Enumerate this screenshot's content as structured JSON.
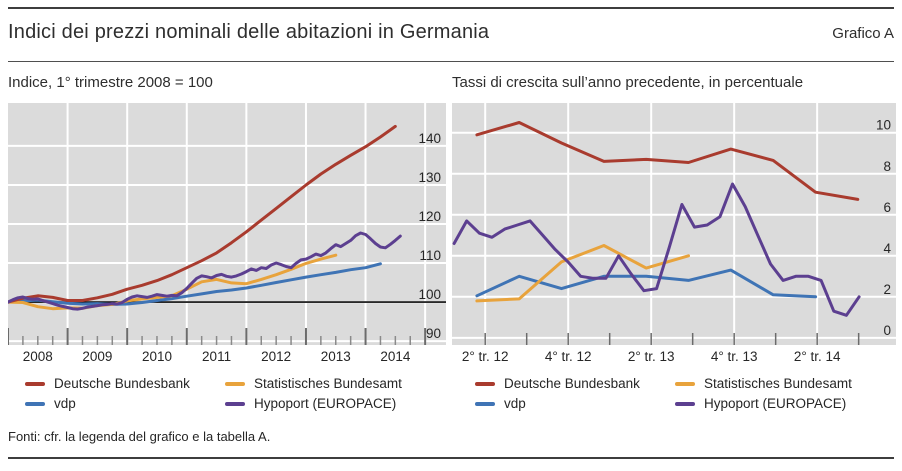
{
  "header": {
    "title": "Indici dei prezzi nominali delle abitazioni in Germania",
    "graph_label": "Grafico A"
  },
  "panels": [
    {
      "subtitle": "Indice, 1° trimestre 2008 = 100"
    },
    {
      "subtitle": "Tassi di crescita sull’anno precedente, in percentuale"
    }
  ],
  "legend": {
    "items": [
      {
        "label": "Deutsche Bundesbank",
        "color": "#A93B2E"
      },
      {
        "label": "Statistisches Bundesamt",
        "color": "#E8A33C"
      },
      {
        "label": "vdp",
        "color": "#3F74B5"
      },
      {
        "label": "Hypoport (EUROPACE)",
        "color": "#5C3F90"
      }
    ]
  },
  "footer": {
    "text": "Fonti: cfr. la legenda del grafico e la tabella A."
  },
  "colors": {
    "panel_background": "#DBDBDB",
    "gridline": "#FFFFFF",
    "baseline": "#0a0a0a",
    "tick_major": "#6b6b6b",
    "tick_minor": "#8a8a8a",
    "text": "#262626"
  },
  "chart_data": [
    {
      "type": "line",
      "title": "Indice, 1° trimestre 2008 = 100",
      "xlabel": "",
      "ylabel": "",
      "xlim": [
        2008,
        2015.35
      ],
      "ylim": [
        89,
        151
      ],
      "yticks": [
        90,
        100,
        110,
        120,
        130,
        140
      ],
      "baseline": 100,
      "x_gridlines": [
        2009,
        2010,
        2011,
        2012,
        2013,
        2014,
        2015
      ],
      "x_tick_range": [
        2008,
        2015
      ],
      "x_minor_step": 0.25,
      "grid": true,
      "legend_position": "below",
      "x_labels": [
        {
          "pos": 2008.5,
          "text": "2008"
        },
        {
          "pos": 2009.5,
          "text": "2009"
        },
        {
          "pos": 2010.5,
          "text": "2010"
        },
        {
          "pos": 2011.5,
          "text": "2011"
        },
        {
          "pos": 2012.5,
          "text": "2012"
        },
        {
          "pos": 2013.5,
          "text": "2013"
        },
        {
          "pos": 2014.5,
          "text": "2014"
        }
      ],
      "series": [
        {
          "name": "vdp",
          "color": "#3F74B5",
          "x_start": 2008.0,
          "x_step": 0.25,
          "values": [
            100,
            100.3,
            100.5,
            100.1,
            99.7,
            99.5,
            99.6,
            99.4,
            99.5,
            99.9,
            100.4,
            100.9,
            101.5,
            102.1,
            102.7,
            103.1,
            103.6,
            104.3,
            105.0,
            105.7,
            106.4,
            107.0,
            107.6,
            108.3,
            108.8,
            109.8
          ]
        },
        {
          "name": "Statistisches Bundesamt",
          "color": "#E8A33C",
          "x_start": 2008.0,
          "x_step": 0.25,
          "values": [
            100,
            99.9,
            98.8,
            98.3,
            98.5,
            98.4,
            99.1,
            99.4,
            100.3,
            100.8,
            101.2,
            101.6,
            103.3,
            105.2,
            105.8,
            104.9,
            104.7,
            105.8,
            107.0,
            108.4,
            109.9,
            111.0,
            112.0
          ]
        },
        {
          "name": "Deutsche Bundesbank",
          "color": "#A93B2E",
          "x_start": 2008.0,
          "x_step": 0.25,
          "values": [
            100,
            101.0,
            101.6,
            101.2,
            100.4,
            100.4,
            101.1,
            102.0,
            103.3,
            104.3,
            105.5,
            107.0,
            108.8,
            110.6,
            112.6,
            115.2,
            118.0,
            121.0,
            124.0,
            127.0,
            130.0,
            132.8,
            135.3,
            137.6,
            139.8,
            142.3,
            145.0
          ]
        },
        {
          "name": "Hypoport (EUROPACE)",
          "color": "#5C3F90",
          "x_start": 2008.0,
          "x_step": 0.0833333,
          "values": [
            100,
            100.6,
            101.1,
            101.3,
            100.9,
            100.7,
            100.8,
            100.4,
            100.0,
            99.6,
            99.2,
            98.9,
            98.6,
            98.3,
            98.2,
            98.4,
            98.7,
            98.9,
            99.1,
            99.3,
            99.4,
            99.6,
            99.5,
            99.9,
            100.7,
            101.3,
            101.6,
            101.4,
            101.2,
            101.5,
            101.9,
            101.7,
            101.5,
            101.7,
            101.6,
            102.4,
            103.5,
            104.8,
            106.1,
            106.7,
            106.5,
            106.2,
            106.8,
            107.1,
            106.6,
            106.4,
            106.7,
            107.2,
            107.8,
            108.5,
            108.1,
            108.8,
            108.6,
            109.5,
            110.0,
            109.6,
            109.1,
            108.8,
            109.9,
            110.8,
            111.0,
            111.6,
            112.3,
            111.9,
            112.6,
            113.7,
            114.7,
            114.2,
            115.0,
            115.8,
            117.0,
            117.7,
            117.3,
            116.2,
            115.0,
            114.1,
            113.9,
            114.8,
            115.8,
            116.9
          ]
        }
      ]
    },
    {
      "type": "line",
      "title": "Tassi di crescita sull’anno precedente, in percentuale",
      "xlabel": "",
      "ylabel": "",
      "xlim": [
        -0.8,
        9.9
      ],
      "ylim": [
        -0.35,
        11.45
      ],
      "yticks": [
        0,
        2,
        4,
        6,
        8,
        10
      ],
      "x_gridlines": [
        0,
        2,
        4,
        6,
        8
      ],
      "x_ticks": [
        0,
        1,
        2,
        3,
        4,
        5,
        6,
        7,
        8,
        9
      ],
      "grid": true,
      "legend_position": "below",
      "x_labels": [
        {
          "pos": 0,
          "text": "2° tr. 12"
        },
        {
          "pos": 2,
          "text": "4° tr. 12"
        },
        {
          "pos": 4,
          "text": "2° tr. 13"
        },
        {
          "pos": 6,
          "text": "4° tr. 13"
        },
        {
          "pos": 8,
          "text": "2° tr. 14"
        }
      ],
      "series": [
        {
          "name": "vdp",
          "color": "#3F74B5",
          "x_start": -0.2,
          "x_step": 1.02,
          "values": [
            2.05,
            3.0,
            2.4,
            3.0,
            3.0,
            2.8,
            3.3,
            2.1,
            2.0
          ]
        },
        {
          "name": "Statistisches Bundesamt",
          "color": "#E8A33C",
          "x_start": -0.2,
          "x_step": 1.02,
          "values": [
            1.8,
            1.9,
            3.7,
            4.5,
            3.4,
            4.0
          ]
        },
        {
          "name": "Deutsche Bundesbank",
          "color": "#A93B2E",
          "x_start": -0.2,
          "x_step": 1.02,
          "values": [
            9.9,
            10.5,
            9.5,
            8.6,
            8.7,
            8.55,
            9.2,
            8.65,
            7.1,
            6.75
          ]
        },
        {
          "name": "Hypoport (EUROPACE)",
          "color": "#5C3F90",
          "x_start": -0.75,
          "x_step": 0.305,
          "values": [
            4.6,
            5.7,
            5.1,
            4.9,
            5.3,
            5.5,
            5.7,
            5.0,
            4.3,
            3.7,
            3.0,
            2.9,
            2.9,
            4.0,
            3.1,
            2.3,
            2.4,
            4.4,
            6.5,
            5.4,
            5.5,
            5.9,
            7.5,
            6.4,
            5.0,
            3.6,
            2.8,
            3.0,
            3.0,
            2.8,
            1.3,
            1.1,
            2.0
          ]
        }
      ]
    }
  ]
}
